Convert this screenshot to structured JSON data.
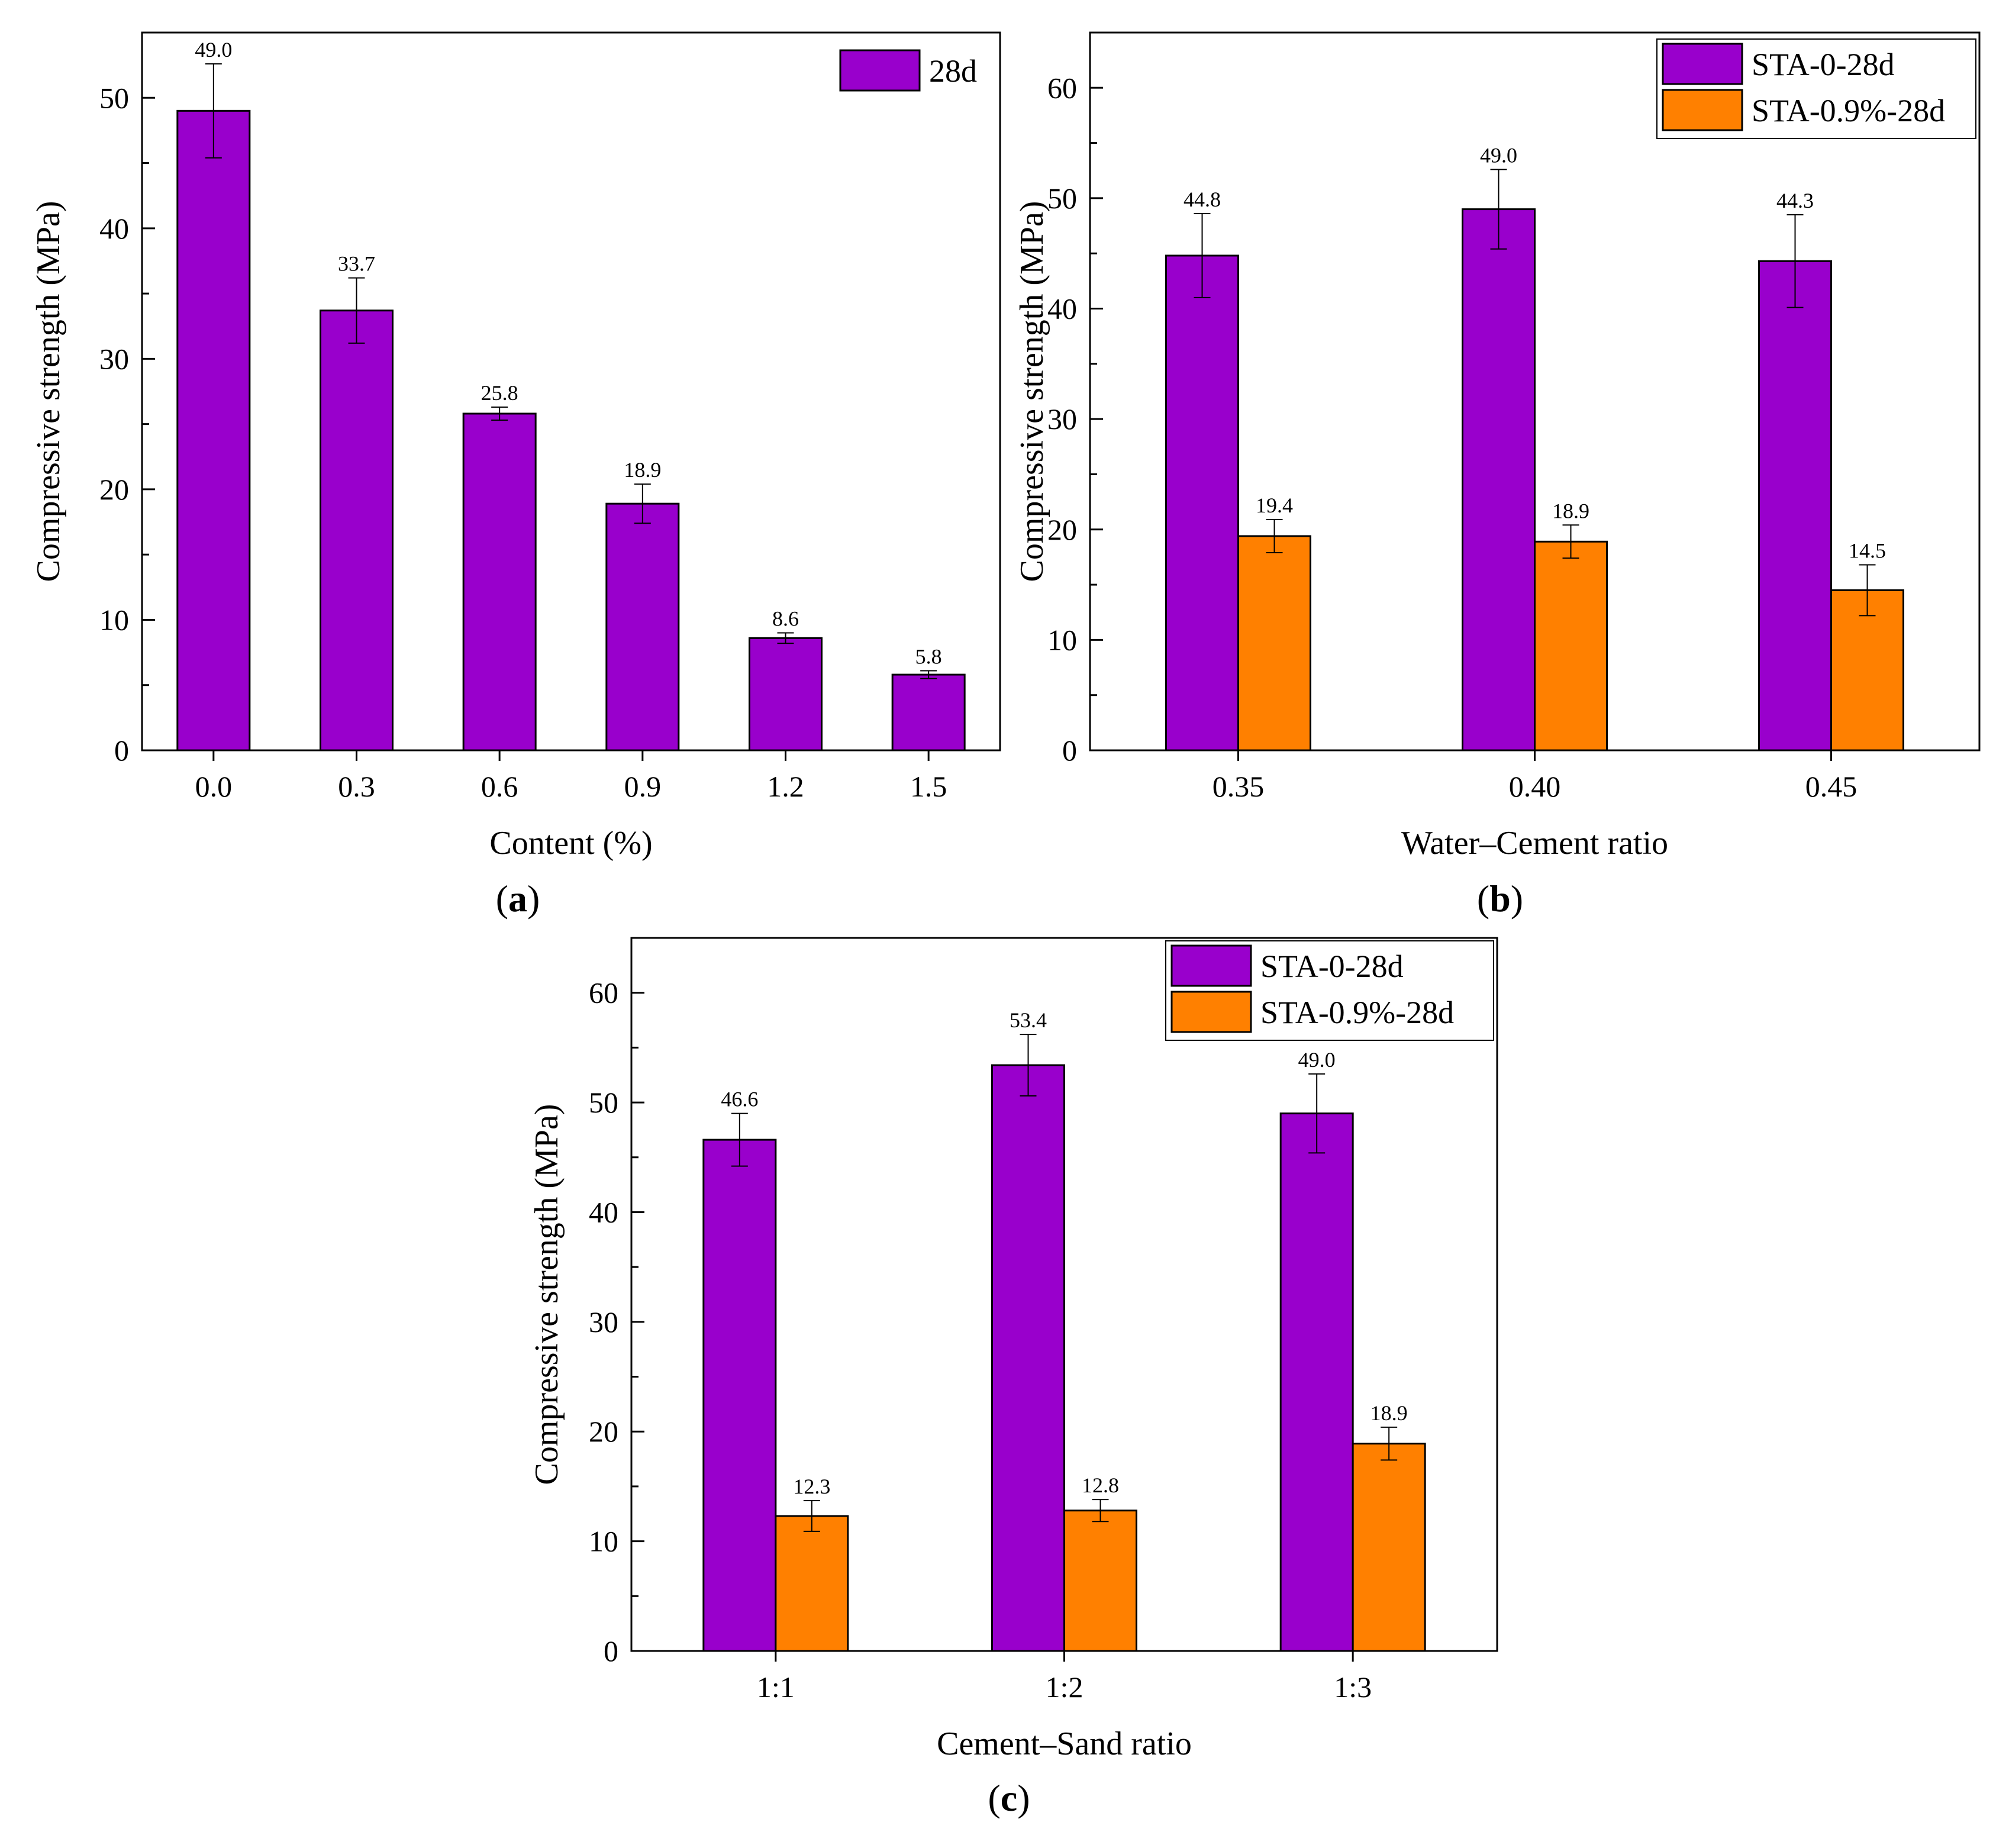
{
  "colors": {
    "series_primary": "#9900CC",
    "series_secondary": "#FF8000"
  },
  "chart_data": [
    {
      "type": "bar",
      "panel_label": "a",
      "xlabel": "Content (%)",
      "ylabel": "Compressive strength (MPa)",
      "categories": [
        "0.0",
        "0.3",
        "0.6",
        "0.9",
        "1.2",
        "1.5"
      ],
      "ylim": [
        0,
        55
      ],
      "yticks": [
        0,
        10,
        20,
        30,
        40,
        50
      ],
      "legend_position": "top-right",
      "series": [
        {
          "name": "28d",
          "color": "#9900CC",
          "values": [
            49.0,
            33.7,
            25.8,
            18.9,
            8.6,
            5.8
          ],
          "labels": [
            "49.0",
            "33.7",
            "25.8",
            "18.9",
            "8.6",
            "5.8"
          ],
          "errors": [
            3.6,
            2.5,
            0.5,
            1.5,
            0.4,
            0.3
          ]
        }
      ]
    },
    {
      "type": "bar",
      "panel_label": "b",
      "xlabel": "Water–Cement ratio",
      "ylabel": "Compressive strength (MPa)",
      "categories": [
        "0.35",
        "0.40",
        "0.45"
      ],
      "ylim": [
        0,
        65
      ],
      "yticks": [
        0,
        10,
        20,
        30,
        40,
        50,
        60
      ],
      "legend_position": "top-right",
      "series": [
        {
          "name": "STA-0-28d",
          "color": "#9900CC",
          "values": [
            44.8,
            49.0,
            44.3
          ],
          "labels": [
            "44.8",
            "49.0",
            "44.3"
          ],
          "errors": [
            3.8,
            3.6,
            4.2
          ]
        },
        {
          "name": "STA-0.9%-28d",
          "color": "#FF8000",
          "values": [
            19.4,
            18.9,
            14.5
          ],
          "labels": [
            "19.4",
            "18.9",
            "14.5"
          ],
          "errors": [
            1.5,
            1.5,
            2.3
          ]
        }
      ]
    },
    {
      "type": "bar",
      "panel_label": "c",
      "xlabel": "Cement–Sand ratio",
      "ylabel": "Compressive strength (MPa)",
      "categories": [
        "1:1",
        "1:2",
        "1:3"
      ],
      "ylim": [
        0,
        65
      ],
      "yticks": [
        0,
        10,
        20,
        30,
        40,
        50,
        60
      ],
      "legend_position": "top-right",
      "series": [
        {
          "name": "STA-0-28d",
          "color": "#9900CC",
          "values": [
            46.6,
            53.4,
            49.0
          ],
          "labels": [
            "46.6",
            "53.4",
            "49.0"
          ],
          "errors": [
            2.4,
            2.8,
            3.6
          ]
        },
        {
          "name": "STA-0.9%-28d",
          "color": "#FF8000",
          "values": [
            12.3,
            12.8,
            18.9
          ],
          "labels": [
            "12.3",
            "12.8",
            "18.9"
          ],
          "errors": [
            1.4,
            1.0,
            1.5
          ]
        }
      ]
    }
  ]
}
